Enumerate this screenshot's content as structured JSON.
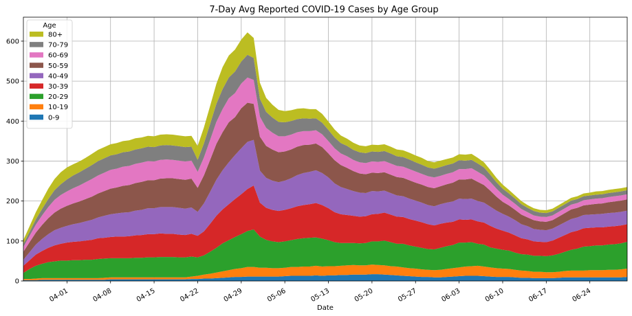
{
  "chart_data": {
    "type": "area",
    "stacked": true,
    "title": "7-Day Avg Reported COVID-19 Cases by Age Group",
    "xlabel": "Date",
    "ylabel": "",
    "ylim": [
      0,
      660
    ],
    "yticks": [
      0,
      100,
      200,
      300,
      400,
      500,
      600
    ],
    "grid": true,
    "legend": {
      "title": "Age",
      "position": "top-left"
    },
    "x": [
      "2020-03-25",
      "2020-03-26",
      "2020-03-27",
      "2020-03-28",
      "2020-03-29",
      "2020-03-30",
      "2020-03-31",
      "2020-04-01",
      "2020-04-02",
      "2020-04-03",
      "2020-04-04",
      "2020-04-05",
      "2020-04-06",
      "2020-04-07",
      "2020-04-08",
      "2020-04-09",
      "2020-04-10",
      "2020-04-11",
      "2020-04-12",
      "2020-04-13",
      "2020-04-14",
      "2020-04-15",
      "2020-04-16",
      "2020-04-17",
      "2020-04-18",
      "2020-04-19",
      "2020-04-20",
      "2020-04-21",
      "2020-04-22",
      "2020-04-23",
      "2020-04-24",
      "2020-04-25",
      "2020-04-26",
      "2020-04-27",
      "2020-04-28",
      "2020-04-29",
      "2020-04-30",
      "2020-05-01",
      "2020-05-02",
      "2020-05-03",
      "2020-05-04",
      "2020-05-05",
      "2020-05-06",
      "2020-05-07",
      "2020-05-08",
      "2020-05-09",
      "2020-05-10",
      "2020-05-11",
      "2020-05-12",
      "2020-05-13",
      "2020-05-14",
      "2020-05-15",
      "2020-05-16",
      "2020-05-17",
      "2020-05-18",
      "2020-05-19",
      "2020-05-20",
      "2020-05-21",
      "2020-05-22",
      "2020-05-23",
      "2020-05-24",
      "2020-05-25",
      "2020-05-26",
      "2020-05-27",
      "2020-05-28",
      "2020-05-29",
      "2020-05-30",
      "2020-05-31",
      "2020-06-01",
      "2020-06-02",
      "2020-06-03",
      "2020-06-04",
      "2020-06-05",
      "2020-06-06",
      "2020-06-07",
      "2020-06-08",
      "2020-06-09",
      "2020-06-10",
      "2020-06-11",
      "2020-06-12",
      "2020-06-13",
      "2020-06-14",
      "2020-06-15",
      "2020-06-16",
      "2020-06-17",
      "2020-06-18",
      "2020-06-19",
      "2020-06-20",
      "2020-06-21",
      "2020-06-22",
      "2020-06-23",
      "2020-06-24",
      "2020-06-25",
      "2020-06-26",
      "2020-06-27",
      "2020-06-28",
      "2020-06-29",
      "2020-06-30"
    ],
    "xtick_labels": [
      "04-01",
      "04-08",
      "04-15",
      "04-22",
      "04-29",
      "05-06",
      "05-13",
      "05-20",
      "05-27",
      "06-03",
      "06-10",
      "06-17",
      "06-24"
    ],
    "xtick_dates": [
      "2020-04-01",
      "2020-04-08",
      "2020-04-15",
      "2020-04-22",
      "2020-04-29",
      "2020-05-06",
      "2020-05-13",
      "2020-05-20",
      "2020-05-27",
      "2020-06-03",
      "2020-06-10",
      "2020-06-17",
      "2020-06-24"
    ],
    "series": [
      {
        "name": "0-9",
        "color": "#1f77b4",
        "values": [
          2,
          2,
          2,
          3,
          3,
          3,
          3,
          3,
          3,
          3,
          3,
          3,
          3,
          3,
          4,
          4,
          4,
          4,
          4,
          4,
          4,
          4,
          4,
          4,
          4,
          4,
          4,
          5,
          5,
          6,
          6,
          7,
          8,
          9,
          10,
          10,
          11,
          11,
          11,
          11,
          11,
          11,
          12,
          13,
          13,
          13,
          13,
          14,
          13,
          14,
          14,
          15,
          15,
          16,
          16,
          16,
          17,
          17,
          16,
          15,
          14,
          13,
          12,
          11,
          10,
          10,
          9,
          9,
          10,
          11,
          12,
          13,
          13,
          13,
          12,
          11,
          10,
          10,
          10,
          9,
          8,
          8,
          7,
          7,
          7,
          7,
          8,
          9,
          9,
          9,
          9,
          9,
          9,
          9,
          9,
          9,
          9,
          10
        ]
      },
      {
        "name": "10-19",
        "color": "#ff7f0e",
        "values": [
          3,
          3,
          4,
          4,
          4,
          4,
          4,
          4,
          4,
          4,
          4,
          4,
          4,
          5,
          5,
          5,
          5,
          5,
          5,
          5,
          5,
          5,
          5,
          5,
          5,
          5,
          5,
          6,
          8,
          10,
          12,
          14,
          16,
          18,
          20,
          22,
          24,
          24,
          22,
          22,
          21,
          21,
          21,
          22,
          22,
          23,
          23,
          24,
          23,
          23,
          23,
          23,
          24,
          24,
          23,
          23,
          24,
          23,
          23,
          22,
          22,
          21,
          20,
          20,
          19,
          18,
          18,
          19,
          20,
          21,
          22,
          23,
          24,
          25,
          24,
          23,
          22,
          21,
          20,
          19,
          18,
          17,
          16,
          16,
          15,
          15,
          15,
          16,
          17,
          17,
          17,
          18,
          18,
          18,
          19,
          19,
          20,
          21
        ]
      },
      {
        "name": "20-29",
        "color": "#2ca02c",
        "values": [
          15,
          25,
          32,
          36,
          40,
          42,
          44,
          44,
          45,
          45,
          46,
          46,
          48,
          48,
          48,
          48,
          48,
          48,
          49,
          49,
          50,
          50,
          51,
          51,
          51,
          50,
          50,
          50,
          46,
          48,
          55,
          62,
          70,
          75,
          80,
          85,
          90,
          94,
          78,
          70,
          67,
          65,
          66,
          67,
          70,
          71,
          72,
          71,
          70,
          65,
          60,
          57,
          56,
          55,
          55,
          56,
          58,
          59,
          62,
          60,
          57,
          59,
          57,
          55,
          54,
          52,
          52,
          55,
          57,
          58,
          62,
          60,
          60,
          55,
          55,
          50,
          49,
          47,
          46,
          43,
          41,
          41,
          40,
          40,
          40,
          42,
          45,
          48,
          52,
          55,
          60,
          60,
          62,
          62,
          63,
          64,
          65,
          67
        ]
      },
      {
        "name": "30-39",
        "color": "#d62728",
        "values": [
          18,
          22,
          28,
          32,
          36,
          40,
          42,
          45,
          46,
          47,
          48,
          50,
          52,
          52,
          53,
          54,
          54,
          55,
          56,
          57,
          58,
          58,
          59,
          58,
          58,
          57,
          56,
          57,
          54,
          60,
          70,
          80,
          85,
          90,
          95,
          100,
          105,
          110,
          85,
          80,
          79,
          78,
          79,
          80,
          82,
          83,
          84,
          86,
          84,
          80,
          75,
          72,
          70,
          68,
          67,
          67,
          68,
          69,
          70,
          69,
          68,
          67,
          66,
          65,
          64,
          62,
          60,
          60,
          59,
          58,
          58,
          57,
          57,
          56,
          55,
          54,
          50,
          48,
          45,
          43,
          40,
          38,
          36,
          35,
          35,
          37,
          40,
          42,
          44,
          45,
          46,
          46,
          45,
          45,
          45,
          45,
          45,
          44
        ]
      },
      {
        "name": "40-49",
        "color": "#9467bd",
        "values": [
          15,
          20,
          25,
          30,
          34,
          38,
          40,
          42,
          44,
          46,
          48,
          50,
          52,
          55,
          57,
          58,
          60,
          60,
          62,
          63,
          65,
          65,
          66,
          67,
          67,
          67,
          66,
          66,
          60,
          70,
          80,
          90,
          98,
          105,
          110,
          115,
          118,
          114,
          80,
          75,
          73,
          72,
          73,
          75,
          78,
          80,
          81,
          82,
          80,
          77,
          72,
          68,
          65,
          62,
          60,
          58,
          58,
          56,
          55,
          54,
          53,
          52,
          51,
          50,
          49,
          48,
          48,
          49,
          50,
          51,
          52,
          52,
          52,
          51,
          50,
          48,
          45,
          42,
          40,
          38,
          35,
          33,
          31,
          30,
          30,
          30,
          31,
          32,
          33,
          33,
          33,
          33,
          33,
          34,
          34,
          34,
          34,
          34
        ]
      },
      {
        "name": "50-59",
        "color": "#8c564b",
        "values": [
          20,
          25,
          30,
          35,
          40,
          44,
          48,
          50,
          52,
          54,
          56,
          58,
          60,
          62,
          64,
          65,
          67,
          68,
          69,
          70,
          70,
          70,
          71,
          72,
          72,
          72,
          72,
          72,
          60,
          70,
          80,
          90,
          95,
          100,
          95,
          100,
          98,
          90,
          85,
          80,
          78,
          75,
          73,
          72,
          71,
          70,
          68,
          67,
          65,
          60,
          58,
          55,
          53,
          50,
          48,
          47,
          46,
          46,
          46,
          46,
          46,
          46,
          46,
          45,
          45,
          45,
          45,
          45,
          46,
          47,
          48,
          49,
          50,
          48,
          44,
          40,
          35,
          30,
          28,
          26,
          24,
          22,
          22,
          21,
          21,
          21,
          22,
          23,
          24,
          24,
          24,
          25,
          26,
          26,
          27,
          28,
          28,
          28
        ]
      },
      {
        "name": "60-69",
        "color": "#e377c2",
        "values": [
          12,
          16,
          20,
          24,
          28,
          32,
          34,
          36,
          38,
          40,
          42,
          44,
          45,
          46,
          47,
          47,
          48,
          48,
          48,
          48,
          48,
          47,
          47,
          47,
          46,
          46,
          46,
          45,
          40,
          45,
          50,
          55,
          58,
          60,
          60,
          62,
          63,
          60,
          50,
          45,
          42,
          40,
          38,
          37,
          36,
          35,
          34,
          33,
          32,
          31,
          30,
          29,
          29,
          28,
          28,
          28,
          28,
          28,
          28,
          28,
          28,
          28,
          28,
          28,
          27,
          27,
          27,
          26,
          26,
          26,
          26,
          26,
          26,
          25,
          24,
          22,
          20,
          18,
          16,
          15,
          14,
          13,
          12,
          12,
          12,
          12,
          12,
          12,
          12,
          12,
          13,
          13,
          13,
          13,
          13,
          13,
          13,
          13
        ]
      },
      {
        "name": "70-79",
        "color": "#7f7f7f",
        "values": [
          8,
          10,
          13,
          16,
          20,
          24,
          27,
          30,
          32,
          33,
          34,
          35,
          36,
          36,
          36,
          36,
          36,
          36,
          36,
          36,
          36,
          36,
          36,
          36,
          36,
          36,
          36,
          35,
          30,
          35,
          40,
          45,
          50,
          52,
          54,
          55,
          57,
          55,
          45,
          40,
          38,
          36,
          35,
          34,
          33,
          32,
          31,
          30,
          29,
          28,
          27,
          26,
          26,
          25,
          25,
          25,
          25,
          25,
          25,
          25,
          24,
          24,
          24,
          23,
          23,
          22,
          22,
          22,
          22,
          22,
          22,
          21,
          21,
          21,
          20,
          18,
          16,
          15,
          14,
          13,
          12,
          11,
          11,
          10,
          10,
          10,
          10,
          10,
          10,
          10,
          10,
          10,
          10,
          10,
          10,
          10,
          10,
          10
        ]
      },
      {
        "name": "80+",
        "color": "#bcbd22",
        "values": [
          10,
          14,
          18,
          22,
          26,
          28,
          30,
          30,
          28,
          27,
          27,
          28,
          28,
          28,
          28,
          28,
          28,
          28,
          28,
          27,
          27,
          27,
          27,
          27,
          27,
          27,
          27,
          27,
          35,
          40,
          45,
          50,
          55,
          55,
          55,
          55,
          56,
          50,
          40,
          35,
          32,
          30,
          28,
          27,
          26,
          25,
          24,
          23,
          22,
          21,
          20,
          19,
          18,
          18,
          17,
          17,
          17,
          17,
          17,
          17,
          17,
          17,
          17,
          17,
          17,
          16,
          16,
          16,
          15,
          15,
          15,
          15,
          15,
          14,
          13,
          12,
          11,
          10,
          9,
          8,
          8,
          7,
          7,
          7,
          7,
          7,
          7,
          7,
          7,
          7,
          7,
          7,
          8,
          8,
          8,
          8,
          8,
          8
        ]
      }
    ]
  }
}
